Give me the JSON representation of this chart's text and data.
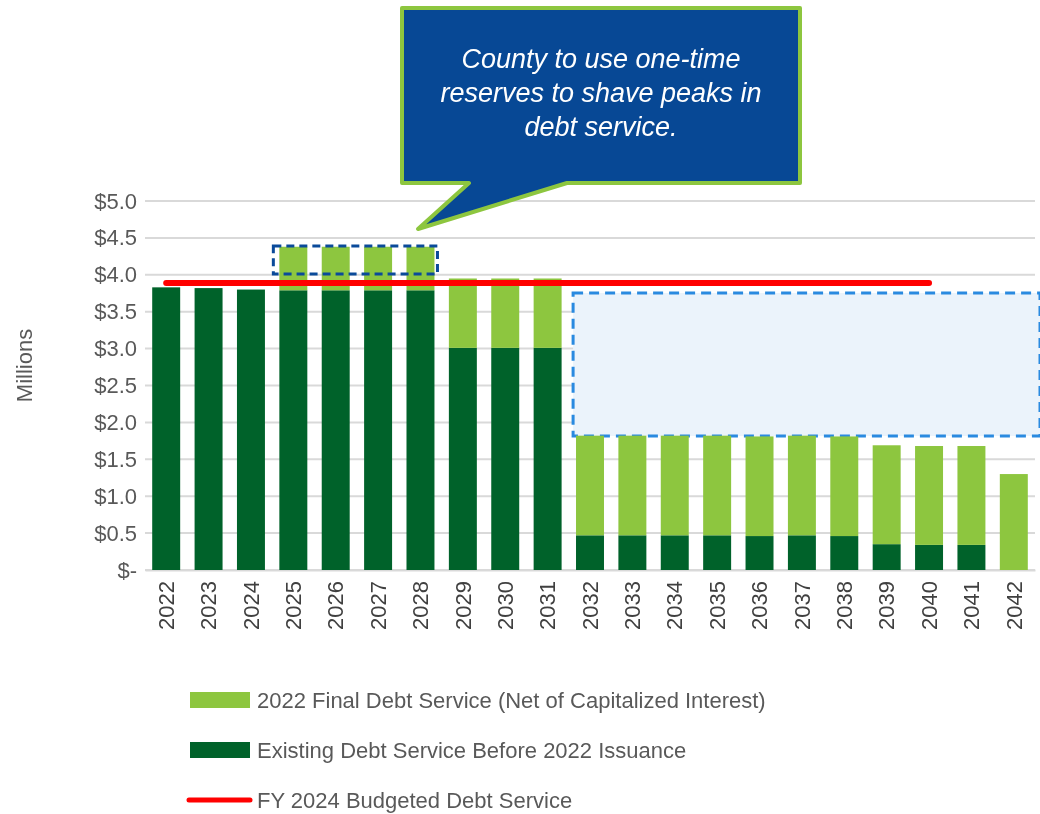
{
  "chart_data": {
    "type": "bar",
    "stacked": true,
    "ylabel": "Millions",
    "categories": [
      "2022",
      "2023",
      "2024",
      "2025",
      "2026",
      "2027",
      "2028",
      "2029",
      "2030",
      "2031",
      "2032",
      "2033",
      "2034",
      "2035",
      "2036",
      "2037",
      "2038",
      "2039",
      "2040",
      "2041",
      "2042"
    ],
    "series": [
      {
        "name": "Existing Debt Service Before 2022 Issuance",
        "color": "#00622a",
        "values": [
          3.83,
          3.82,
          3.8,
          3.79,
          3.79,
          3.79,
          3.79,
          3.01,
          3.01,
          3.01,
          0.47,
          0.47,
          0.47,
          0.47,
          0.46,
          0.47,
          0.46,
          0.35,
          0.34,
          0.34,
          0
        ]
      },
      {
        "name": "2022 Final Debt Service (Net of Capitalized Interest)",
        "color": "#8dc63f",
        "values": [
          0,
          0,
          0,
          0.59,
          0.59,
          0.59,
          0.59,
          0.94,
          0.94,
          0.94,
          1.35,
          1.35,
          1.35,
          1.35,
          1.35,
          1.35,
          1.35,
          1.34,
          1.34,
          1.34,
          1.3
        ]
      },
      {
        "name": "FY 2024 Budgeted Debt Service",
        "type": "line",
        "color": "#ff0000",
        "marker": "none",
        "values": [
          3.89,
          3.89,
          3.89,
          3.89,
          3.89,
          3.89,
          3.89,
          3.89,
          3.89,
          3.89,
          3.89,
          3.89,
          3.89,
          3.89,
          3.89,
          3.89,
          3.89,
          3.89,
          3.89,
          null,
          null
        ]
      }
    ],
    "ylim": [
      0,
      5
    ],
    "yticks": [
      {
        "value": 0,
        "label": "$-"
      },
      {
        "value": 0.5,
        "label": "$0.5"
      },
      {
        "value": 1,
        "label": "$1.0"
      },
      {
        "value": 1.5,
        "label": "$1.5"
      },
      {
        "value": 2,
        "label": "$2.0"
      },
      {
        "value": 2.5,
        "label": "$2.5"
      },
      {
        "value": 3,
        "label": "$3.0"
      },
      {
        "value": 3.5,
        "label": "$3.5"
      },
      {
        "value": 4,
        "label": "$4.0"
      },
      {
        "value": 4.5,
        "label": "$4.5"
      },
      {
        "value": 5,
        "label": "$5.0"
      }
    ],
    "grid": "y",
    "legend": "bottom",
    "annotations": [
      "County to use one-time reserves to shave peaks in debt service."
    ]
  }
}
